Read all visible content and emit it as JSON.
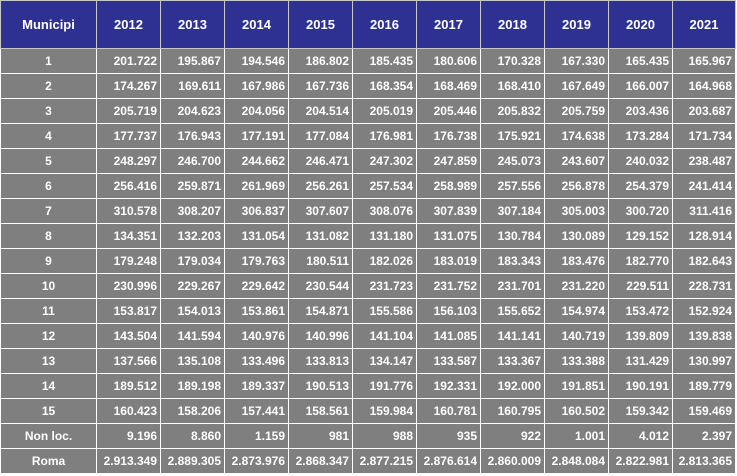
{
  "table": {
    "headers": [
      "Municipi",
      "2012",
      "2013",
      "2014",
      "2015",
      "2016",
      "2017",
      "2018",
      "2019",
      "2020",
      "2021"
    ],
    "rows": [
      [
        "1",
        "201.722",
        "195.867",
        "194.546",
        "186.802",
        "185.435",
        "180.606",
        "170.328",
        "167.330",
        "165.435",
        "165.967"
      ],
      [
        "2",
        "174.267",
        "169.611",
        "167.986",
        "167.736",
        "168.354",
        "168.469",
        "168.410",
        "167.649",
        "166.007",
        "164.968"
      ],
      [
        "3",
        "205.719",
        "204.623",
        "204.056",
        "204.514",
        "205.019",
        "205.446",
        "205.832",
        "205.759",
        "203.436",
        "203.687"
      ],
      [
        "4",
        "177.737",
        "176.943",
        "177.191",
        "177.084",
        "176.981",
        "176.738",
        "175.921",
        "174.638",
        "173.284",
        "171.734"
      ],
      [
        "5",
        "248.297",
        "246.700",
        "244.662",
        "246.471",
        "247.302",
        "247.859",
        "245.073",
        "243.607",
        "240.032",
        "238.487"
      ],
      [
        "6",
        "256.416",
        "259.871",
        "261.969",
        "256.261",
        "257.534",
        "258.989",
        "257.556",
        "256.878",
        "254.379",
        "241.414"
      ],
      [
        "7",
        "310.578",
        "308.207",
        "306.837",
        "307.607",
        "308.076",
        "307.839",
        "307.184",
        "305.003",
        "300.720",
        "311.416"
      ],
      [
        "8",
        "134.351",
        "132.203",
        "131.054",
        "131.082",
        "131.180",
        "131.075",
        "130.784",
        "130.089",
        "129.152",
        "128.914"
      ],
      [
        "9",
        "179.248",
        "179.034",
        "179.763",
        "180.511",
        "182.026",
        "183.019",
        "183.343",
        "183.476",
        "182.770",
        "182.643"
      ],
      [
        "10",
        "230.996",
        "229.267",
        "229.642",
        "230.544",
        "231.723",
        "231.752",
        "231.701",
        "231.220",
        "229.511",
        "228.731"
      ],
      [
        "11",
        "153.817",
        "154.013",
        "153.861",
        "154.871",
        "155.586",
        "156.103",
        "155.652",
        "154.974",
        "153.472",
        "152.924"
      ],
      [
        "12",
        "143.504",
        "141.594",
        "140.976",
        "140.996",
        "141.104",
        "141.085",
        "141.141",
        "140.719",
        "139.809",
        "139.838"
      ],
      [
        "13",
        "137.566",
        "135.108",
        "133.496",
        "133.813",
        "134.147",
        "133.587",
        "133.367",
        "133.388",
        "131.429",
        "130.997"
      ],
      [
        "14",
        "189.512",
        "189.198",
        "189.337",
        "190.513",
        "191.776",
        "192.331",
        "192.000",
        "191.851",
        "190.191",
        "189.779"
      ],
      [
        "15",
        "160.423",
        "158.206",
        "157.441",
        "158.561",
        "159.984",
        "160.781",
        "160.795",
        "160.502",
        "159.342",
        "159.469"
      ],
      [
        "Non loc.",
        "9.196",
        "8.860",
        "1.159",
        "981",
        "988",
        "935",
        "922",
        "1.001",
        "4.012",
        "2.397"
      ],
      [
        "Roma",
        "2.913.349",
        "2.889.305",
        "2.873.976",
        "2.868.347",
        "2.877.215",
        "2.876.614",
        "2.860.009",
        "2.848.084",
        "2.822.981",
        "2.813.365"
      ]
    ]
  },
  "colors": {
    "header_bg": "#2e3192",
    "cell_bg": "#7f7f7f",
    "text": "#ffffff"
  }
}
